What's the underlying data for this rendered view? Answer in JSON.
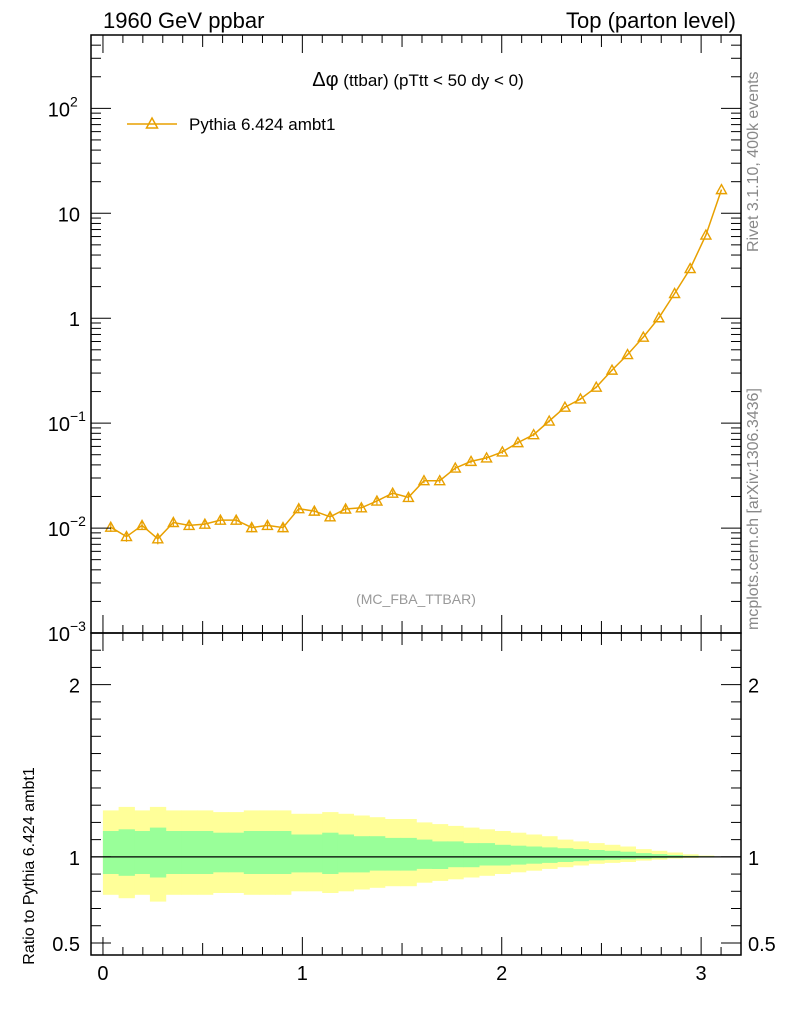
{
  "header": {
    "left": "1960 GeV ppbar",
    "right": "Top (parton level)"
  },
  "side_labels": {
    "rivet": "Rivet 3.1.10,  400k events",
    "mcplots": "mcplots.cern.ch [arXiv:1306.3436]"
  },
  "chart_data": [
    {
      "type": "line",
      "panel": "main",
      "title_prefix": "Δφ",
      "title_rest": " (ttbar) (pTtt < 50 dy < 0)",
      "watermark": "(MC_FBA_TTBAR)",
      "yscale": "log",
      "ylim": [
        0.001,
        500
      ],
      "xlim": [
        -0.06,
        3.2
      ],
      "y_tick_labels": [
        "10^-3",
        "10^-2",
        "10^-1",
        "1",
        "10",
        "10^2"
      ],
      "legend_position": "top-left",
      "series": [
        {
          "name": "Pythia 6.424 ambt1",
          "color": "#e8a000",
          "marker": "open-triangle",
          "x": [
            0.039,
            0.118,
            0.196,
            0.275,
            0.353,
            0.432,
            0.511,
            0.589,
            0.668,
            0.746,
            0.825,
            0.903,
            0.982,
            1.06,
            1.139,
            1.217,
            1.296,
            1.374,
            1.453,
            1.532,
            1.61,
            1.689,
            1.767,
            1.846,
            1.924,
            2.003,
            2.081,
            2.16,
            2.238,
            2.317,
            2.395,
            2.474,
            2.553,
            2.631,
            2.71,
            2.788,
            2.867,
            2.945,
            3.024,
            3.102
          ],
          "y": [
            0.0102,
            0.0083,
            0.0106,
            0.0079,
            0.0113,
            0.0106,
            0.0109,
            0.0119,
            0.0119,
            0.0101,
            0.0106,
            0.0101,
            0.0153,
            0.0145,
            0.0128,
            0.0152,
            0.0156,
            0.0181,
            0.0215,
            0.0196,
            0.0283,
            0.0283,
            0.0373,
            0.0432,
            0.0466,
            0.0532,
            0.0652,
            0.0776,
            0.1047,
            0.142,
            0.17,
            0.22,
            0.32,
            0.45,
            0.66,
            1.01,
            1.72,
            2.97,
            6.2,
            16.8
          ],
          "yerr": [
            0.001,
            0.0009,
            0.001,
            0.0009,
            0.001,
            0.001,
            0.001,
            0.0011,
            0.0011,
            0.001,
            0.001,
            0.001,
            0.0012,
            0.0012,
            0.0011,
            0.0012,
            0.0012,
            0.0013,
            0.0014,
            0.0014,
            0.0016,
            0.0016,
            0.0019,
            0.002,
            0.0021,
            0.0022,
            0.0025,
            0.0027,
            0.0031,
            0.0037,
            0.004,
            0.0046,
            0.0055,
            0.0065,
            0.0079,
            0.0098,
            0.0128,
            0.0168,
            0.0243,
            0.04
          ]
        }
      ]
    },
    {
      "type": "area",
      "panel": "ratio",
      "ylabel": "Ratio to Pythia 6.424 ambt1",
      "ylim": [
        0.43,
        2.3
      ],
      "y_tick_labels": [
        "0.5",
        "1",
        "2"
      ],
      "x_tick_labels": [
        "0",
        "1",
        "2",
        "3"
      ],
      "reference_line": 1,
      "bands": [
        {
          "color": "#ffff99",
          "lower": [
            0.78,
            0.76,
            0.78,
            0.74,
            0.78,
            0.78,
            0.78,
            0.79,
            0.79,
            0.78,
            0.78,
            0.78,
            0.8,
            0.8,
            0.79,
            0.8,
            0.81,
            0.82,
            0.83,
            0.83,
            0.85,
            0.86,
            0.87,
            0.88,
            0.89,
            0.9,
            0.91,
            0.92,
            0.93,
            0.94,
            0.95,
            0.96,
            0.965,
            0.97,
            0.978,
            0.984,
            0.99,
            0.994,
            0.997,
            0.999
          ],
          "upper": [
            1.27,
            1.29,
            1.27,
            1.29,
            1.27,
            1.27,
            1.27,
            1.26,
            1.26,
            1.27,
            1.27,
            1.27,
            1.25,
            1.25,
            1.26,
            1.25,
            1.24,
            1.23,
            1.22,
            1.22,
            1.2,
            1.19,
            1.18,
            1.17,
            1.16,
            1.15,
            1.14,
            1.13,
            1.12,
            1.1,
            1.09,
            1.08,
            1.07,
            1.06,
            1.045,
            1.035,
            1.025,
            1.015,
            1.007,
            1.002
          ]
        },
        {
          "color": "#99ff99",
          "lower": [
            0.9,
            0.89,
            0.9,
            0.88,
            0.9,
            0.9,
            0.9,
            0.91,
            0.91,
            0.9,
            0.9,
            0.9,
            0.91,
            0.91,
            0.9,
            0.91,
            0.91,
            0.92,
            0.92,
            0.92,
            0.93,
            0.93,
            0.94,
            0.94,
            0.95,
            0.95,
            0.955,
            0.96,
            0.965,
            0.97,
            0.975,
            0.98,
            0.983,
            0.986,
            0.989,
            0.992,
            0.995,
            0.997,
            0.999,
            1.0
          ],
          "upper": [
            1.15,
            1.16,
            1.15,
            1.17,
            1.15,
            1.15,
            1.15,
            1.14,
            1.14,
            1.15,
            1.15,
            1.15,
            1.13,
            1.13,
            1.14,
            1.13,
            1.12,
            1.12,
            1.11,
            1.11,
            1.1,
            1.09,
            1.09,
            1.08,
            1.08,
            1.07,
            1.065,
            1.06,
            1.055,
            1.05,
            1.045,
            1.04,
            1.035,
            1.03,
            1.022,
            1.016,
            1.011,
            1.006,
            1.003,
            1.001
          ]
        }
      ]
    }
  ]
}
